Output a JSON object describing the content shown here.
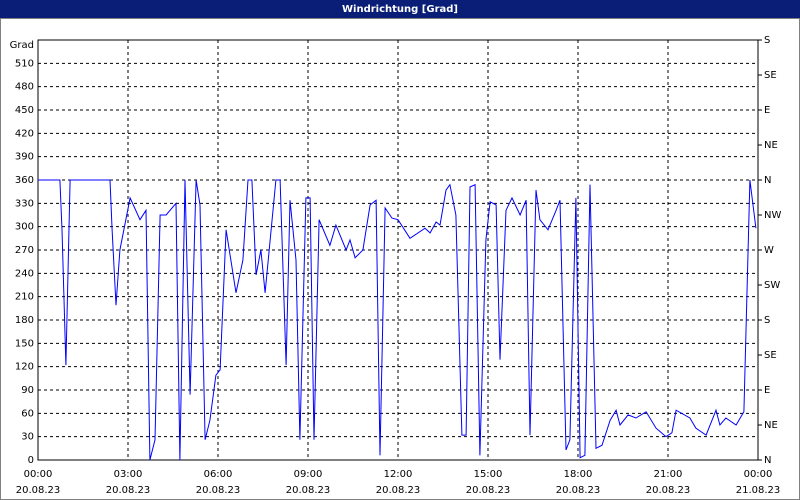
{
  "chart_data": {
    "type": "line",
    "title": "Windrichtung [Grad]",
    "ylabel": "Grad",
    "xlim": [
      0,
      24
    ],
    "xticks": [
      {
        "value": 0,
        "label": "00:00"
      },
      {
        "value": 3,
        "label": "03:00"
      },
      {
        "value": 6,
        "label": "06:00"
      },
      {
        "value": 9,
        "label": "09:00"
      },
      {
        "value": 12,
        "label": "12:00"
      },
      {
        "value": 15,
        "label": "15:00"
      },
      {
        "value": 18,
        "label": "18:00"
      },
      {
        "value": 21,
        "label": "21:00"
      },
      {
        "value": 24,
        "label": "00:00"
      }
    ],
    "xtick_dates": [
      "20.08.23",
      "20.08.23",
      "20.08.23",
      "20.08.23",
      "20.08.23",
      "20.08.23",
      "20.08.23",
      "20.08.23",
      "21.08.23"
    ],
    "ylim": [
      0,
      540
    ],
    "yticks": [
      0,
      30,
      60,
      90,
      120,
      150,
      180,
      210,
      240,
      270,
      300,
      330,
      360,
      390,
      420,
      450,
      480,
      510
    ],
    "y2lim": [
      0,
      540
    ],
    "y2ticks": [
      {
        "value": 0,
        "label": "N"
      },
      {
        "value": 45,
        "label": "NE"
      },
      {
        "value": 90,
        "label": "E"
      },
      {
        "value": 135,
        "label": "SE"
      },
      {
        "value": 180,
        "label": "S"
      },
      {
        "value": 225,
        "label": "SW"
      },
      {
        "value": 270,
        "label": "W"
      },
      {
        "value": 315,
        "label": "NW"
      },
      {
        "value": 360,
        "label": "N"
      },
      {
        "value": 405,
        "label": "NE"
      },
      {
        "value": 450,
        "label": "E"
      },
      {
        "value": 495,
        "label": "SE"
      },
      {
        "value": 540,
        "label": "S"
      }
    ],
    "grid": true,
    "series": [
      {
        "color": "#0000ff",
        "x": [
          0,
          0.73,
          0.8,
          0.93,
          1.07,
          2.4,
          2.47,
          2.6,
          2.73,
          3.07,
          3.4,
          3.6,
          3.73,
          3.9,
          4.07,
          4.27,
          4.6,
          4.73,
          4.9,
          5.07,
          5.27,
          5.4,
          5.57,
          5.73,
          5.93,
          6.07,
          6.27,
          6.6,
          6.83,
          7.0,
          7.13,
          7.27,
          7.43,
          7.57,
          7.93,
          8.07,
          8.27,
          8.4,
          8.6,
          8.73,
          8.93,
          9.07,
          9.2,
          9.37,
          9.73,
          9.93,
          10.27,
          10.4,
          10.57,
          10.83,
          11.07,
          11.27,
          11.4,
          11.57,
          11.8,
          12.0,
          12.4,
          12.9,
          13.07,
          13.27,
          13.4,
          13.6,
          13.73,
          13.93,
          14.13,
          14.27,
          14.4,
          14.57,
          14.73,
          14.93,
          15.07,
          15.27,
          15.4,
          15.6,
          15.8,
          16.07,
          16.27,
          16.4,
          16.6,
          16.73,
          17.0,
          17.27,
          17.4,
          17.6,
          17.73,
          17.93,
          18.07,
          18.23,
          18.4,
          18.6,
          18.8,
          19.07,
          19.27,
          19.4,
          19.67,
          19.93,
          20.27,
          20.6,
          20.93,
          21.13,
          21.27,
          21.73,
          21.93,
          22.27,
          22.6,
          22.73,
          22.93,
          23.27,
          23.53,
          23.73,
          23.93
        ],
        "values": [
          360,
          360,
          296,
          122,
          360,
          360,
          296,
          199,
          270,
          337,
          309,
          321,
          0,
          26,
          315,
          315,
          330,
          0,
          360,
          84,
          360,
          328,
          26,
          51,
          109,
          116,
          296,
          215,
          257,
          360,
          360,
          238,
          270,
          215,
          360,
          360,
          122,
          334,
          257,
          26,
          337,
          337,
          26,
          309,
          276,
          302,
          270,
          283,
          260,
          270,
          328,
          334,
          6,
          324,
          311,
          309,
          285,
          298,
          292,
          306,
          302,
          347,
          354,
          315,
          32,
          32,
          351,
          354,
          6,
          283,
          332,
          328,
          129,
          321,
          337,
          315,
          334,
          32,
          347,
          309,
          296,
          321,
          334,
          13,
          26,
          337,
          3,
          6,
          354,
          15,
          19,
          51,
          64,
          45,
          58,
          54,
          62,
          41,
          30,
          35,
          64,
          54,
          41,
          32,
          64,
          45,
          54,
          45,
          62,
          360,
          298
        ]
      }
    ]
  }
}
